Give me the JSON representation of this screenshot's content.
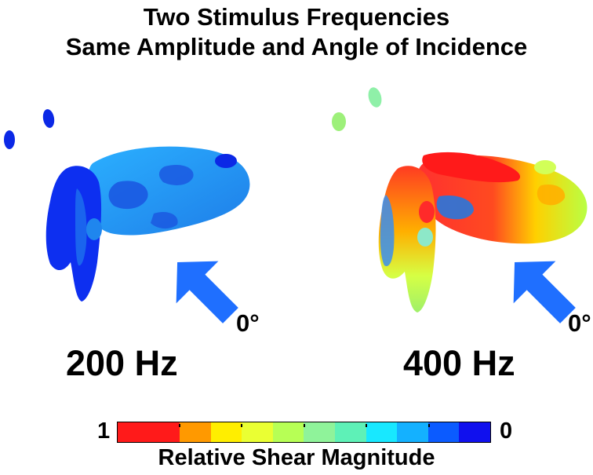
{
  "title": {
    "line1": "Two Stimulus Frequencies",
    "line2": "Same Amplitude and Angle of Incidence"
  },
  "panels": [
    {
      "frequency_label": "200 Hz",
      "angle_label": "0°",
      "dominant_shear": "low"
    },
    {
      "frequency_label": "400 Hz",
      "angle_label": "0°",
      "dominant_shear": "high"
    }
  ],
  "arrow_color": "#1f6fff",
  "colorbar": {
    "max_label": "1",
    "min_label": "0",
    "title": "Relative Shear Magnitude",
    "colors": [
      "#ff1a1a",
      "#ff1a1a",
      "#ff9900",
      "#ffee00",
      "#eaff33",
      "#b7ff55",
      "#8ff39a",
      "#5ef1b7",
      "#18e8ff",
      "#14b1ff",
      "#0b5bff",
      "#1010ee"
    ]
  }
}
